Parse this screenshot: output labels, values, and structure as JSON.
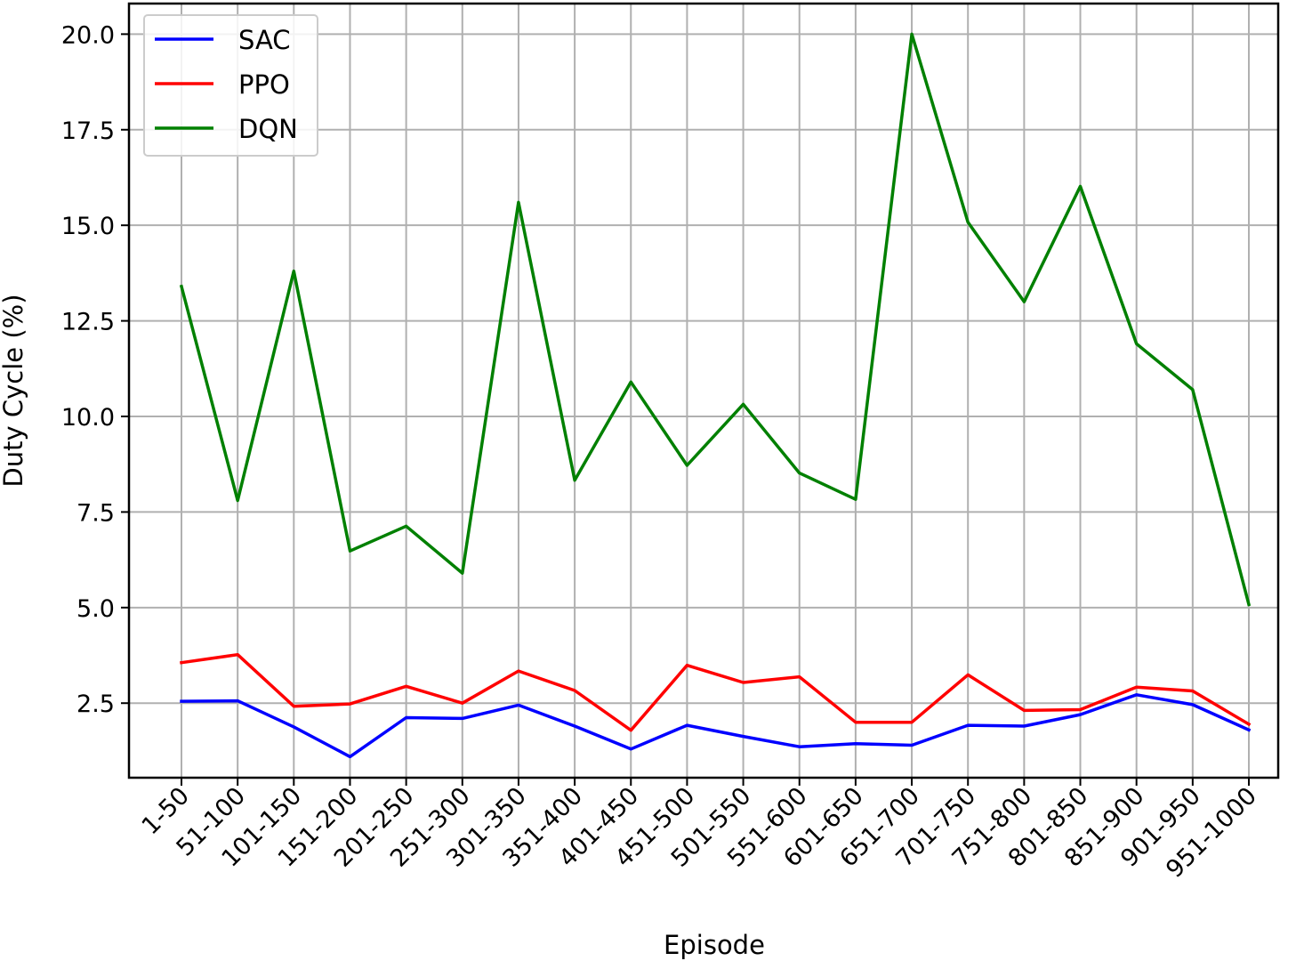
{
  "chart_data": {
    "type": "line",
    "title": "",
    "xlabel": "Episode",
    "ylabel": "Duty Cycle (%)",
    "categories": [
      "1-50",
      "51-100",
      "101-150",
      "151-200",
      "201-250",
      "251-300",
      "301-350",
      "351-400",
      "401-450",
      "451-500",
      "501-550",
      "551-600",
      "601-650",
      "651-700",
      "701-750",
      "751-800",
      "801-850",
      "851-900",
      "901-950",
      "951-1000"
    ],
    "ylim": [
      0.55,
      20.8
    ],
    "yticks": [
      2.5,
      5.0,
      7.5,
      10.0,
      12.5,
      15.0,
      17.5,
      20.0
    ],
    "ytick_labels": [
      "2.5",
      "5.0",
      "7.5",
      "10.0",
      "12.5",
      "15.0",
      "17.5",
      "20.0"
    ],
    "grid": true,
    "legend_position": "top-left",
    "series": [
      {
        "name": "SAC",
        "color": "#0000ff",
        "values": [
          2.55,
          2.56,
          1.88,
          1.1,
          2.12,
          2.1,
          2.45,
          1.9,
          1.3,
          1.92,
          1.63,
          1.36,
          1.44,
          1.4,
          1.92,
          1.9,
          2.2,
          2.72,
          2.46,
          1.8
        ]
      },
      {
        "name": "PPO",
        "color": "#ff0000",
        "values": [
          3.56,
          3.77,
          2.42,
          2.48,
          2.94,
          2.5,
          3.34,
          2.83,
          1.79,
          3.49,
          3.04,
          3.19,
          2.0,
          2.0,
          3.24,
          2.31,
          2.33,
          2.92,
          2.82,
          1.95
        ]
      },
      {
        "name": "DQN",
        "color": "#008000",
        "values": [
          13.4,
          7.8,
          13.8,
          6.48,
          7.13,
          5.9,
          15.6,
          8.33,
          10.9,
          8.72,
          10.32,
          8.52,
          7.83,
          20.0,
          15.08,
          13.0,
          16.02,
          11.9,
          10.7,
          5.08
        ]
      }
    ]
  }
}
